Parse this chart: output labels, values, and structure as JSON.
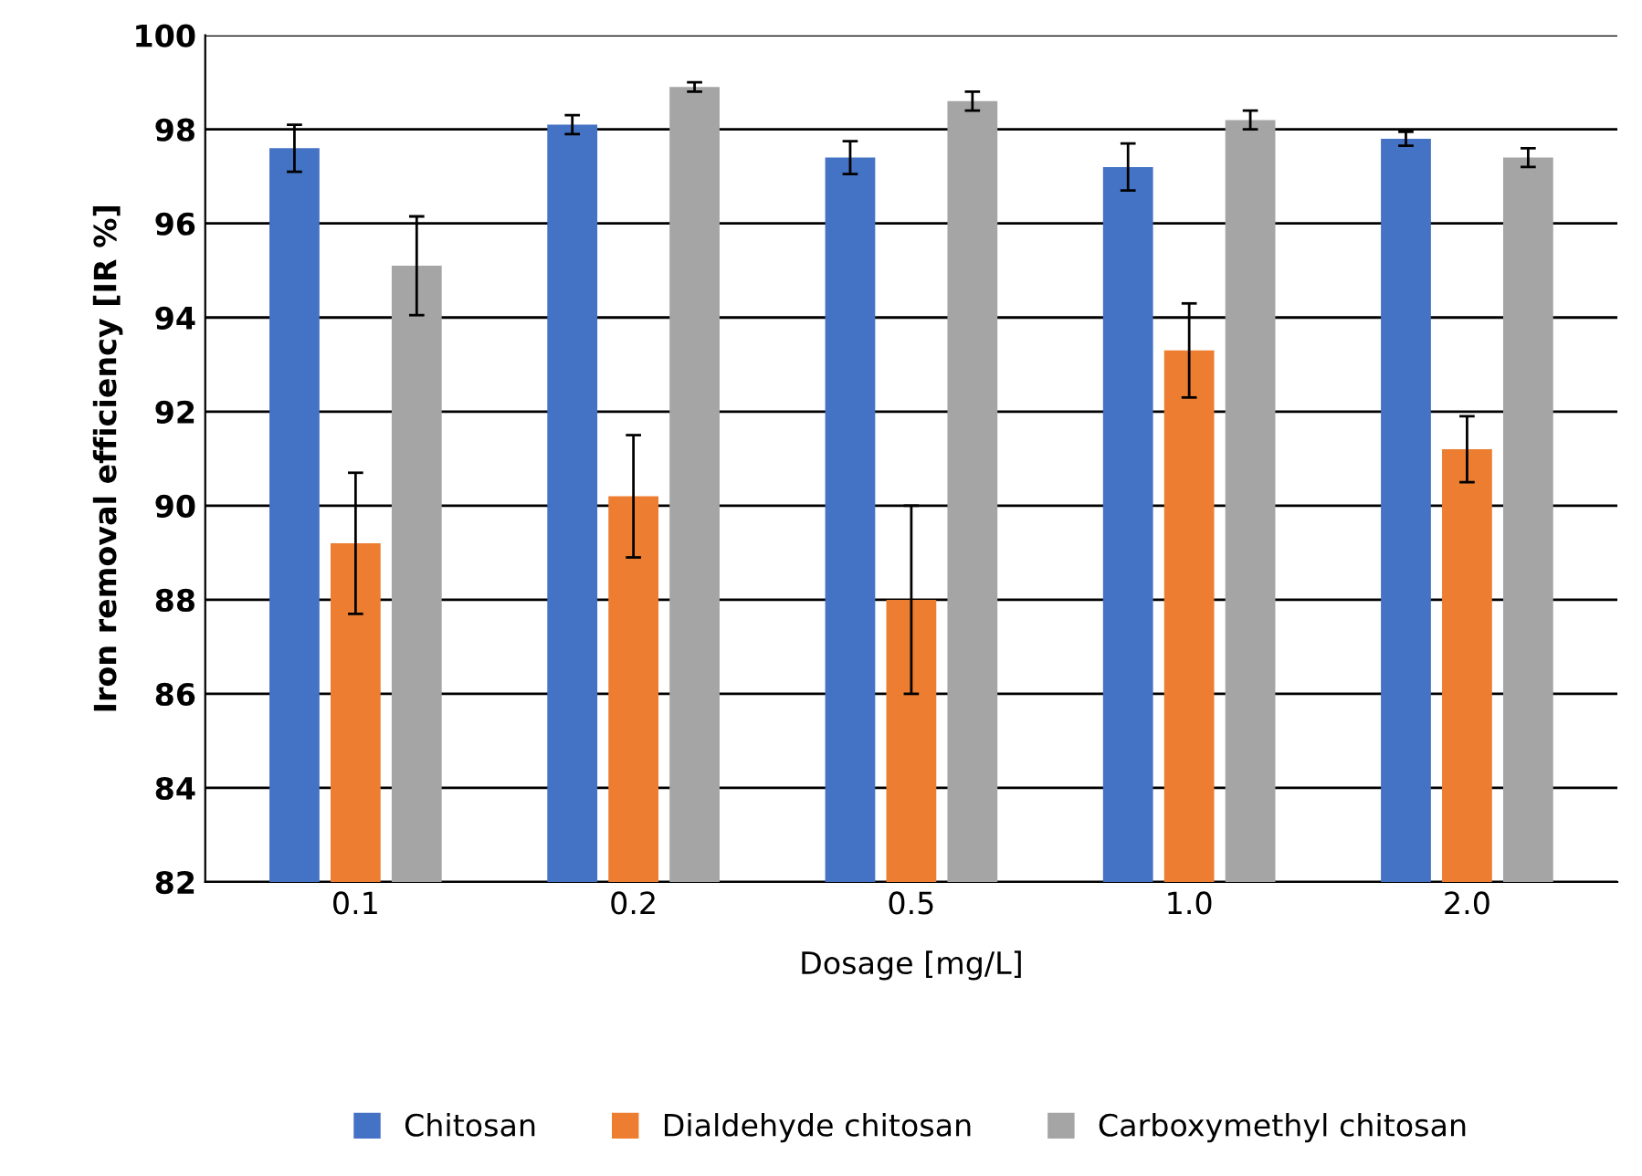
{
  "chart_data": {
    "type": "bar",
    "xlabel": "Dosage [mg/L]",
    "ylabel": "Iron removal efficiency [IR %]",
    "categories": [
      "0.1",
      "0.2",
      "0.5",
      "1.0",
      "2.0"
    ],
    "series": [
      {
        "name": "Chitosan",
        "color": "#4472c4",
        "values": [
          97.6,
          98.1,
          97.4,
          97.2,
          97.8
        ],
        "errors": [
          0.5,
          0.2,
          0.35,
          0.5,
          0.15
        ]
      },
      {
        "name": "Dialdehyde chitosan",
        "color": "#ed7d31",
        "values": [
          89.2,
          90.2,
          88.0,
          93.3,
          91.2
        ],
        "errors": [
          1.5,
          1.3,
          2.0,
          1.0,
          0.7
        ]
      },
      {
        "name": "Carboxymethyl chitosan",
        "color": "#a5a5a5",
        "values": [
          95.1,
          98.9,
          98.6,
          98.2,
          97.4
        ],
        "errors": [
          1.05,
          0.1,
          0.2,
          0.2,
          0.2
        ]
      }
    ],
    "ylim": [
      82,
      100
    ],
    "yticks": [
      82,
      84,
      86,
      88,
      90,
      92,
      94,
      96,
      98,
      100
    ],
    "grid": "y",
    "legend": "bottom"
  }
}
